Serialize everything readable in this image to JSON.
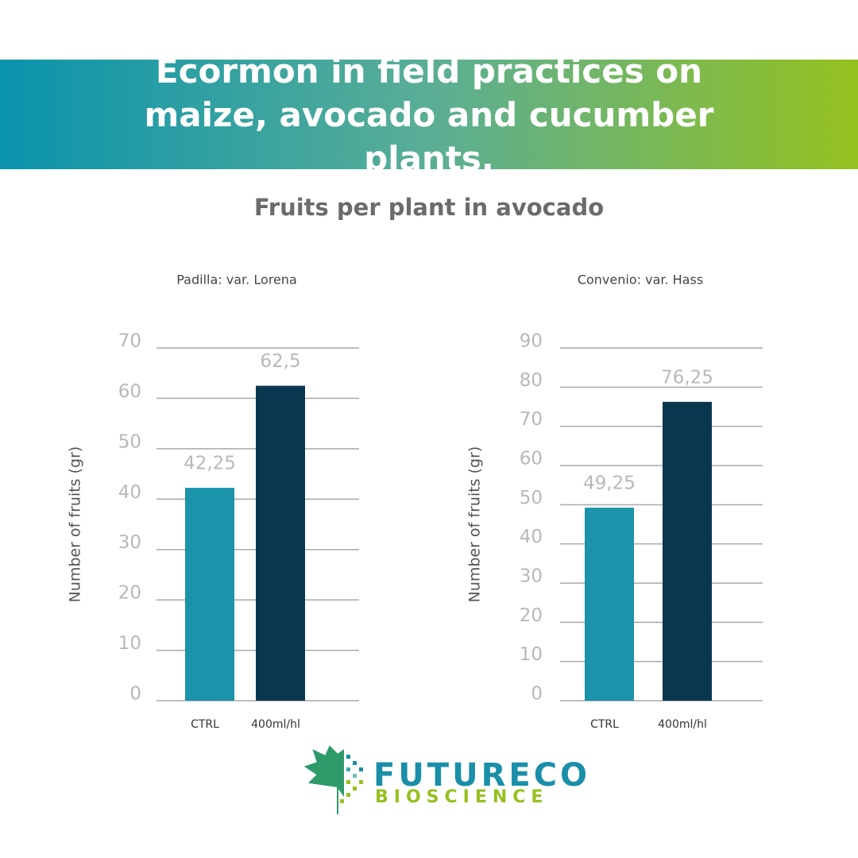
{
  "header": {
    "title": "Ecormon in field practices on maize, avocado and cucumber plants."
  },
  "subtitle": "Fruits per plant in avocado",
  "chart_data": [
    {
      "type": "bar",
      "title": "Padilla: var. Lorena",
      "y_label": "Number of fruits (gr)",
      "categories": [
        "CTRL",
        "400ml/hl"
      ],
      "values": [
        42.25,
        62.5
      ],
      "value_labels": [
        "42,25",
        "62,5"
      ],
      "colors": [
        "#1b93ab",
        "#0b3650"
      ],
      "ylim": [
        0,
        70
      ],
      "yticks": [
        0,
        10,
        20,
        30,
        40,
        50,
        60,
        70
      ],
      "grid": true
    },
    {
      "type": "bar",
      "title": "Convenio: var. Hass",
      "y_label": "Number of fruits (gr)",
      "categories": [
        "CTRL",
        "400ml/hl"
      ],
      "values": [
        49.25,
        76.25
      ],
      "value_labels": [
        "49,25",
        "76,25"
      ],
      "colors": [
        "#1b93ab",
        "#0b3650"
      ],
      "ylim": [
        0,
        90
      ],
      "yticks": [
        0,
        10,
        20,
        30,
        40,
        50,
        60,
        70,
        80,
        90
      ],
      "grid": true
    }
  ],
  "logo": {
    "line1": "FUTURECO",
    "line2": "BIOSCIENCE"
  }
}
